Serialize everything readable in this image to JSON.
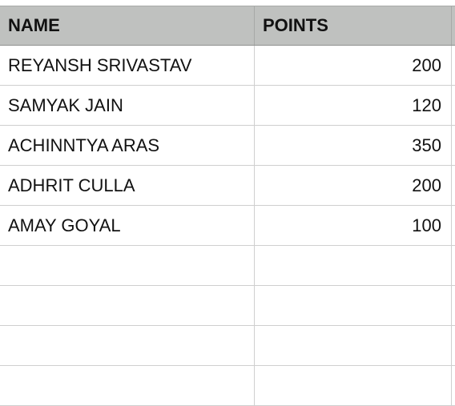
{
  "table": {
    "headers": {
      "name": "NAME",
      "points": "POINTS"
    },
    "rows": [
      {
        "name": "REYANSH SRIVASTAV",
        "points": "200"
      },
      {
        "name": "SAMYAK JAIN",
        "points": "120"
      },
      {
        "name": "ACHINNTYA ARAS",
        "points": "350"
      },
      {
        "name": "ADHRIT CULLA",
        "points": "200"
      },
      {
        "name": "AMAY GOYAL",
        "points": "100"
      },
      {
        "name": "",
        "points": ""
      },
      {
        "name": "",
        "points": ""
      },
      {
        "name": "",
        "points": ""
      },
      {
        "name": "",
        "points": ""
      }
    ]
  },
  "colors": {
    "header_background": "#bfc1bf",
    "grid_line": "#cfcfcf"
  }
}
